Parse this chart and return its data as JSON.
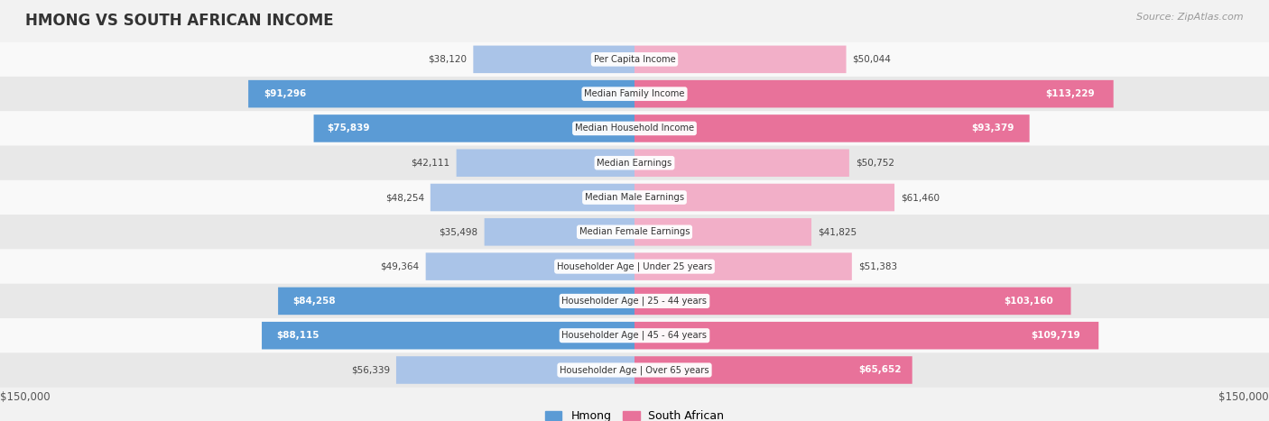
{
  "title": "HMONG VS SOUTH AFRICAN INCOME",
  "source": "Source: ZipAtlas.com",
  "categories": [
    "Per Capita Income",
    "Median Family Income",
    "Median Household Income",
    "Median Earnings",
    "Median Male Earnings",
    "Median Female Earnings",
    "Householder Age | Under 25 years",
    "Householder Age | 25 - 44 years",
    "Householder Age | 45 - 64 years",
    "Householder Age | Over 65 years"
  ],
  "hmong_values": [
    38120,
    91296,
    75839,
    42111,
    48254,
    35498,
    49364,
    84258,
    88115,
    56339
  ],
  "sa_values": [
    50044,
    113229,
    93379,
    50752,
    61460,
    41825,
    51383,
    103160,
    109719,
    65652
  ],
  "hmong_labels": [
    "$38,120",
    "$91,296",
    "$75,839",
    "$42,111",
    "$48,254",
    "$35,498",
    "$49,364",
    "$84,258",
    "$88,115",
    "$56,339"
  ],
  "sa_labels": [
    "$50,044",
    "$113,229",
    "$93,379",
    "$50,752",
    "$61,460",
    "$41,825",
    "$51,383",
    "$103,160",
    "$109,719",
    "$65,652"
  ],
  "max_value": 150000,
  "x_label_left": "$150,000",
  "x_label_right": "$150,000",
  "hmong_color_strong": "#5b9bd5",
  "hmong_color_light": "#aac4e8",
  "sa_color_strong": "#e8729a",
  "sa_color_light": "#f2afc8",
  "bg_color": "#f2f2f2",
  "row_bg_light": "#f9f9f9",
  "row_bg_dark": "#e8e8e8",
  "legend_hmong": "Hmong",
  "legend_sa": "South African",
  "hmong_threshold": 65000,
  "sa_threshold": 65000
}
